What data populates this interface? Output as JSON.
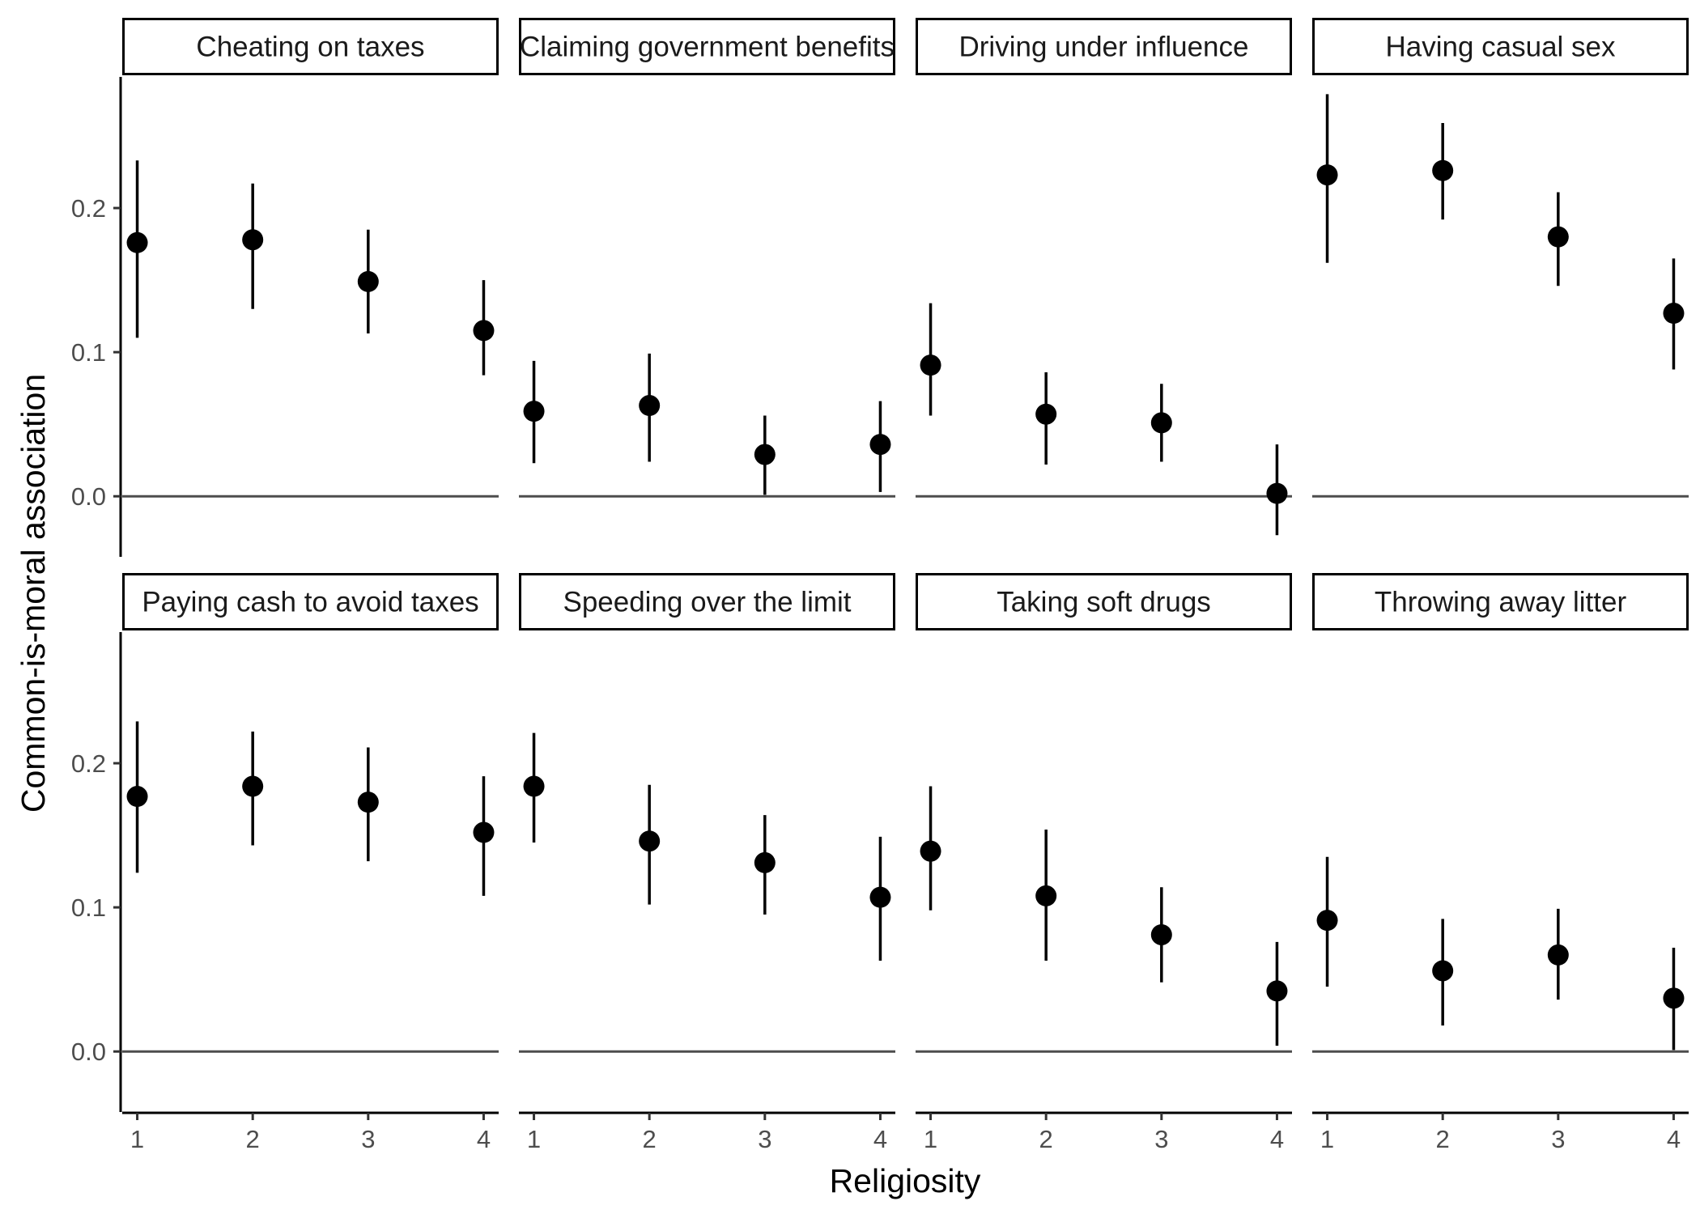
{
  "chart_data": {
    "type": "scatter",
    "subtype": "faceted point estimates with error bars",
    "xlabel": "Religiosity",
    "ylabel": "Common-is-moral association",
    "x_ticks": [
      "1",
      "2",
      "3",
      "4"
    ],
    "y_ticks": [
      "0.0",
      "0.1",
      "0.2"
    ],
    "xlim": [
      0.87,
      4.13
    ],
    "ylim": [
      -0.042,
      0.291
    ],
    "reference_line_y": 0,
    "grid": false,
    "legend": "none",
    "colors": {
      "points": "#000000",
      "reference_line": "#4d4d4d",
      "strip_border": "#000000"
    },
    "facets": [
      {
        "label": "Cheating on taxes",
        "points": [
          {
            "x": 1,
            "y": 0.176,
            "lo": 0.11,
            "hi": 0.233
          },
          {
            "x": 2,
            "y": 0.178,
            "lo": 0.13,
            "hi": 0.217
          },
          {
            "x": 3,
            "y": 0.149,
            "lo": 0.113,
            "hi": 0.185
          },
          {
            "x": 4,
            "y": 0.115,
            "lo": 0.084,
            "hi": 0.15
          }
        ]
      },
      {
        "label": "Claiming government benefits",
        "points": [
          {
            "x": 1,
            "y": 0.059,
            "lo": 0.023,
            "hi": 0.094
          },
          {
            "x": 2,
            "y": 0.063,
            "lo": 0.024,
            "hi": 0.099
          },
          {
            "x": 3,
            "y": 0.029,
            "lo": 0.001,
            "hi": 0.056
          },
          {
            "x": 4,
            "y": 0.036,
            "lo": 0.003,
            "hi": 0.066
          }
        ]
      },
      {
        "label": "Driving under influence",
        "points": [
          {
            "x": 1,
            "y": 0.091,
            "lo": 0.056,
            "hi": 0.134
          },
          {
            "x": 2,
            "y": 0.057,
            "lo": 0.022,
            "hi": 0.086
          },
          {
            "x": 3,
            "y": 0.051,
            "lo": 0.024,
            "hi": 0.078
          },
          {
            "x": 4,
            "y": 0.002,
            "lo": -0.027,
            "hi": 0.036
          }
        ]
      },
      {
        "label": "Having casual sex",
        "points": [
          {
            "x": 1,
            "y": 0.223,
            "lo": 0.162,
            "hi": 0.279
          },
          {
            "x": 2,
            "y": 0.226,
            "lo": 0.192,
            "hi": 0.259
          },
          {
            "x": 3,
            "y": 0.18,
            "lo": 0.146,
            "hi": 0.211
          },
          {
            "x": 4,
            "y": 0.127,
            "lo": 0.088,
            "hi": 0.165
          }
        ]
      },
      {
        "label": "Paying cash to avoid taxes",
        "points": [
          {
            "x": 1,
            "y": 0.177,
            "lo": 0.124,
            "hi": 0.229
          },
          {
            "x": 2,
            "y": 0.184,
            "lo": 0.143,
            "hi": 0.222
          },
          {
            "x": 3,
            "y": 0.173,
            "lo": 0.132,
            "hi": 0.211
          },
          {
            "x": 4,
            "y": 0.152,
            "lo": 0.108,
            "hi": 0.191
          }
        ]
      },
      {
        "label": "Speeding over the limit",
        "points": [
          {
            "x": 1,
            "y": 0.184,
            "lo": 0.145,
            "hi": 0.221
          },
          {
            "x": 2,
            "y": 0.146,
            "lo": 0.102,
            "hi": 0.185
          },
          {
            "x": 3,
            "y": 0.131,
            "lo": 0.095,
            "hi": 0.164
          },
          {
            "x": 4,
            "y": 0.107,
            "lo": 0.063,
            "hi": 0.149
          }
        ]
      },
      {
        "label": "Taking soft drugs",
        "points": [
          {
            "x": 1,
            "y": 0.139,
            "lo": 0.098,
            "hi": 0.184
          },
          {
            "x": 2,
            "y": 0.108,
            "lo": 0.063,
            "hi": 0.154
          },
          {
            "x": 3,
            "y": 0.081,
            "lo": 0.048,
            "hi": 0.114
          },
          {
            "x": 4,
            "y": 0.042,
            "lo": 0.004,
            "hi": 0.076
          }
        ]
      },
      {
        "label": "Throwing away litter",
        "points": [
          {
            "x": 1,
            "y": 0.091,
            "lo": 0.045,
            "hi": 0.135
          },
          {
            "x": 2,
            "y": 0.056,
            "lo": 0.018,
            "hi": 0.092
          },
          {
            "x": 3,
            "y": 0.067,
            "lo": 0.036,
            "hi": 0.099
          },
          {
            "x": 4,
            "y": 0.037,
            "lo": 0.001,
            "hi": 0.072
          }
        ]
      }
    ]
  }
}
